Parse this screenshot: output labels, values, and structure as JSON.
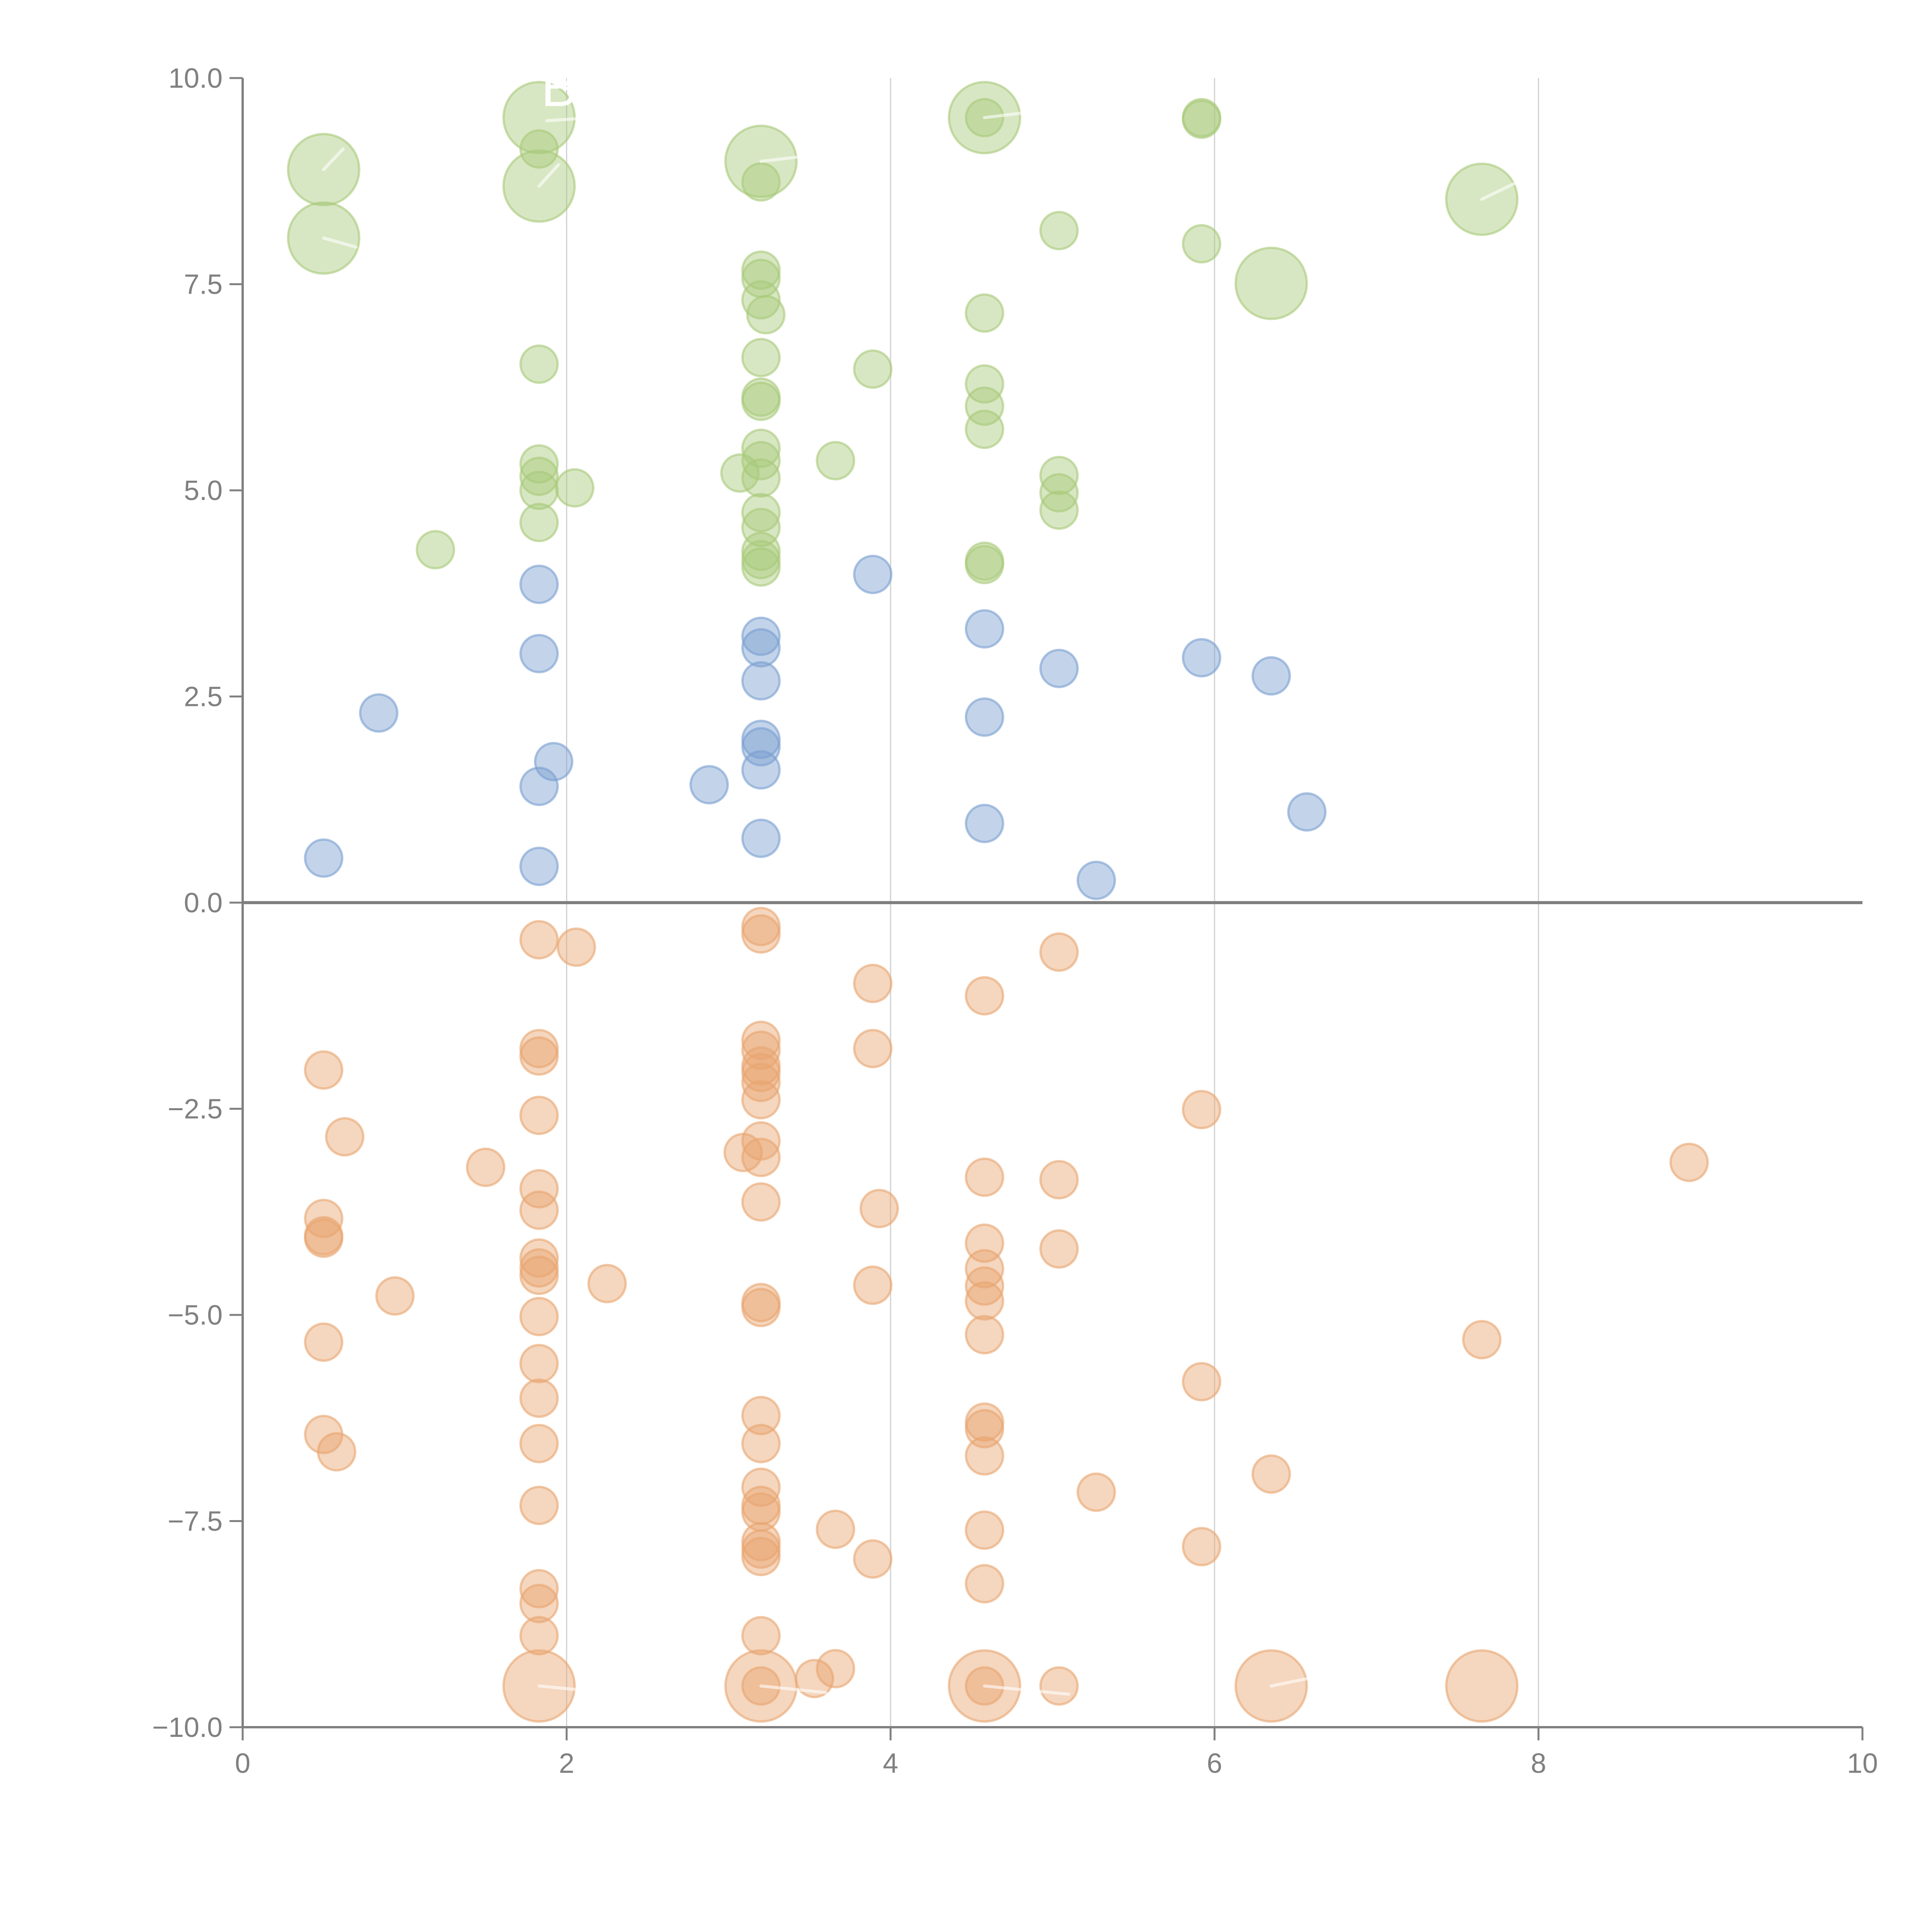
{
  "chart_data": {
    "type": "scatter",
    "subtype": "bubble",
    "title": "",
    "xlabel": "",
    "ylabel": "",
    "xlim": [
      0,
      10
    ],
    "ylim": [
      -10,
      10
    ],
    "x_ticks": [
      "0",
      "2",
      "4",
      "6",
      "8",
      "10"
    ],
    "x_tick_values": [
      0,
      2,
      4,
      6,
      8,
      10
    ],
    "y_ticks": [
      "10.0",
      "7.5",
      "5.0",
      "2.5",
      "0.0",
      "−2.5",
      "−5.0",
      "−7.5",
      "−10.0"
    ],
    "y_tick_values": [
      10,
      7.5,
      5,
      2.5,
      0,
      -2.5,
      -5,
      -7.5,
      -10
    ],
    "grid": "vertical",
    "zero_line": true,
    "legend": "none",
    "series": [
      {
        "name": "green",
        "color": "#a9c97a",
        "points": [
          [
            0.5,
            8.89,
            2
          ],
          [
            0.5,
            8.06,
            2
          ],
          [
            1.83,
            9.52,
            2
          ],
          [
            1.83,
            8.69,
            2
          ],
          [
            1.83,
            9.14,
            1
          ],
          [
            1.19,
            4.28,
            1
          ],
          [
            1.83,
            6.53,
            1
          ],
          [
            1.83,
            5.32,
            1
          ],
          [
            1.83,
            5.17,
            1
          ],
          [
            1.83,
            5.0,
            1
          ],
          [
            2.05,
            5.03,
            1
          ],
          [
            1.83,
            4.61,
            1
          ],
          [
            3.2,
            8.99,
            2
          ],
          [
            3.2,
            8.74,
            1
          ],
          [
            3.2,
            7.67,
            1
          ],
          [
            3.2,
            7.57,
            1
          ],
          [
            3.2,
            7.31,
            1
          ],
          [
            3.23,
            7.13,
            1
          ],
          [
            3.2,
            6.61,
            1
          ],
          [
            3.2,
            6.13,
            1
          ],
          [
            3.2,
            6.08,
            1
          ],
          [
            3.07,
            5.21,
            1
          ],
          [
            3.2,
            5.51,
            1
          ],
          [
            3.2,
            5.36,
            1
          ],
          [
            3.2,
            5.15,
            1
          ],
          [
            3.2,
            4.73,
            1
          ],
          [
            3.2,
            4.55,
            1
          ],
          [
            3.2,
            4.26,
            1
          ],
          [
            3.2,
            4.16,
            1
          ],
          [
            3.2,
            4.07,
            1
          ],
          [
            3.66,
            5.36,
            1
          ],
          [
            3.89,
            6.47,
            1
          ],
          [
            4.58,
            9.52,
            2
          ],
          [
            4.58,
            9.52,
            1
          ],
          [
            4.58,
            7.15,
            1
          ],
          [
            4.58,
            6.29,
            1
          ],
          [
            4.58,
            6.02,
            1
          ],
          [
            4.58,
            5.74,
            1
          ],
          [
            4.58,
            4.14,
            1
          ],
          [
            4.58,
            4.1,
            1
          ],
          [
            5.04,
            8.15,
            1
          ],
          [
            5.04,
            5.18,
            1
          ],
          [
            5.04,
            4.97,
            1
          ],
          [
            5.04,
            4.76,
            1
          ],
          [
            5.92,
            9.52,
            1
          ],
          [
            5.92,
            9.5,
            1
          ],
          [
            5.92,
            7.99,
            1
          ],
          [
            6.35,
            7.51,
            2
          ],
          [
            7.65,
            8.53,
            2
          ]
        ]
      },
      {
        "name": "blue",
        "color": "#7a9fd1",
        "points": [
          [
            0.5,
            0.54,
            1
          ],
          [
            0.84,
            2.3,
            1
          ],
          [
            1.83,
            3.86,
            1
          ],
          [
            1.83,
            3.02,
            1
          ],
          [
            1.92,
            1.71,
            1
          ],
          [
            1.83,
            1.41,
            1
          ],
          [
            1.83,
            0.44,
            1
          ],
          [
            2.88,
            1.43,
            1
          ],
          [
            3.2,
            3.23,
            1
          ],
          [
            3.2,
            3.09,
            1
          ],
          [
            3.2,
            2.69,
            1
          ],
          [
            3.2,
            1.98,
            1
          ],
          [
            3.2,
            1.89,
            1
          ],
          [
            3.2,
            1.61,
            1
          ],
          [
            3.2,
            0.78,
            1
          ],
          [
            3.89,
            3.98,
            1
          ],
          [
            4.58,
            3.32,
            1
          ],
          [
            4.58,
            2.25,
            1
          ],
          [
            4.58,
            0.96,
            1
          ],
          [
            5.04,
            2.84,
            1
          ],
          [
            5.27,
            0.27,
            1
          ],
          [
            5.92,
            2.97,
            1
          ],
          [
            6.35,
            2.75,
            1
          ],
          [
            6.57,
            1.1,
            1
          ]
        ]
      },
      {
        "name": "orange",
        "color": "#e8a56f",
        "points": [
          [
            0.5,
            -2.03,
            1
          ],
          [
            0.63,
            -2.84,
            1
          ],
          [
            0.5,
            -3.83,
            1
          ],
          [
            0.5,
            -4.04,
            1
          ],
          [
            0.5,
            -4.07,
            1
          ],
          [
            0.5,
            -5.33,
            1
          ],
          [
            0.5,
            -6.45,
            1
          ],
          [
            0.58,
            -6.66,
            1
          ],
          [
            0.94,
            -4.77,
            1
          ],
          [
            1.5,
            -3.21,
            1
          ],
          [
            1.83,
            -0.45,
            1
          ],
          [
            2.06,
            -0.54,
            1
          ],
          [
            1.83,
            -1.77,
            1
          ],
          [
            1.83,
            -1.86,
            1
          ],
          [
            1.83,
            -2.58,
            1
          ],
          [
            1.83,
            -3.47,
            1
          ],
          [
            1.83,
            -3.73,
            1
          ],
          [
            1.83,
            -4.31,
            1
          ],
          [
            1.83,
            -4.43,
            1
          ],
          [
            1.83,
            -4.52,
            1
          ],
          [
            1.83,
            -5.02,
            1
          ],
          [
            1.83,
            -5.59,
            1
          ],
          [
            1.83,
            -6.01,
            1
          ],
          [
            1.83,
            -6.56,
            1
          ],
          [
            1.83,
            -7.31,
            1
          ],
          [
            1.83,
            -8.32,
            1
          ],
          [
            1.83,
            -8.5,
            1
          ],
          [
            1.83,
            -8.89,
            1
          ],
          [
            1.83,
            -9.5,
            2
          ],
          [
            2.25,
            -4.62,
            1
          ],
          [
            3.2,
            -0.29,
            1
          ],
          [
            3.2,
            -0.38,
            1
          ],
          [
            3.2,
            -1.67,
            1
          ],
          [
            3.2,
            -1.79,
            1
          ],
          [
            3.2,
            -1.98,
            1
          ],
          [
            3.2,
            -2.06,
            1
          ],
          [
            3.2,
            -2.18,
            1
          ],
          [
            3.2,
            -2.39,
            1
          ],
          [
            3.2,
            -2.89,
            1
          ],
          [
            3.09,
            -3.03,
            1
          ],
          [
            3.2,
            -3.09,
            1
          ],
          [
            3.2,
            -3.63,
            1
          ],
          [
            3.2,
            -4.85,
            1
          ],
          [
            3.2,
            -4.91,
            1
          ],
          [
            3.2,
            -6.22,
            1
          ],
          [
            3.2,
            -6.56,
            1
          ],
          [
            3.2,
            -7.09,
            1
          ],
          [
            3.2,
            -7.31,
            1
          ],
          [
            3.2,
            -7.39,
            1
          ],
          [
            3.2,
            -7.75,
            1
          ],
          [
            3.2,
            -7.84,
            1
          ],
          [
            3.2,
            -7.93,
            1
          ],
          [
            3.2,
            -8.89,
            1
          ],
          [
            3.2,
            -9.5,
            2
          ],
          [
            3.2,
            -9.5,
            1
          ],
          [
            3.53,
            -9.41,
            1
          ],
          [
            3.66,
            -9.29,
            1
          ],
          [
            3.66,
            -7.6,
            1
          ],
          [
            3.89,
            -0.98,
            1
          ],
          [
            3.89,
            -1.77,
            1
          ],
          [
            3.93,
            -3.71,
            1
          ],
          [
            3.89,
            -4.64,
            1
          ],
          [
            3.89,
            -7.96,
            1
          ],
          [
            4.58,
            -1.13,
            1
          ],
          [
            4.58,
            -3.33,
            1
          ],
          [
            4.58,
            -4.13,
            1
          ],
          [
            4.58,
            -4.44,
            1
          ],
          [
            4.58,
            -4.65,
            1
          ],
          [
            4.58,
            -4.83,
            1
          ],
          [
            4.58,
            -5.24,
            1
          ],
          [
            4.58,
            -6.3,
            1
          ],
          [
            4.58,
            -6.38,
            1
          ],
          [
            4.58,
            -6.71,
            1
          ],
          [
            4.58,
            -7.61,
            1
          ],
          [
            4.58,
            -8.26,
            1
          ],
          [
            4.58,
            -9.5,
            2
          ],
          [
            4.58,
            -9.5,
            1
          ],
          [
            5.04,
            -0.6,
            1
          ],
          [
            5.04,
            -3.36,
            1
          ],
          [
            5.04,
            -4.2,
            1
          ],
          [
            5.04,
            -9.5,
            1
          ],
          [
            5.27,
            -7.15,
            1
          ],
          [
            5.92,
            -2.51,
            1
          ],
          [
            5.92,
            -5.81,
            1
          ],
          [
            5.92,
            -7.81,
            1
          ],
          [
            6.35,
            -6.93,
            1
          ],
          [
            6.35,
            -9.5,
            2
          ],
          [
            7.65,
            -5.3,
            1
          ],
          [
            7.65,
            -9.5,
            2
          ],
          [
            8.93,
            -3.15,
            1
          ]
        ]
      }
    ],
    "size_note": "third value in each point is relative bubble size (1 = small, 2 = large)",
    "annotations": [
      {
        "text": "B",
        "x": 1.83,
        "y": 9.52,
        "color": "#ffffff"
      }
    ]
  }
}
